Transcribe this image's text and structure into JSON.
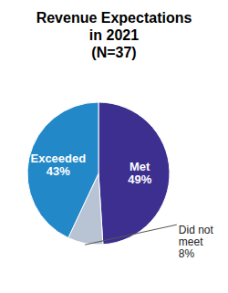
{
  "chart_data": {
    "type": "pie",
    "title": "Revenue Expectations\nin 2021\n(N=37)",
    "categories": [
      "Met",
      "Did not\nmeet",
      "Exceeded"
    ],
    "values": [
      49,
      8,
      43
    ],
    "value_labels": [
      "49%",
      "8%",
      "43%"
    ],
    "colors": [
      "#3d2f8f",
      "#b8c4d4",
      "#2388c8"
    ],
    "data_labels": true
  }
}
